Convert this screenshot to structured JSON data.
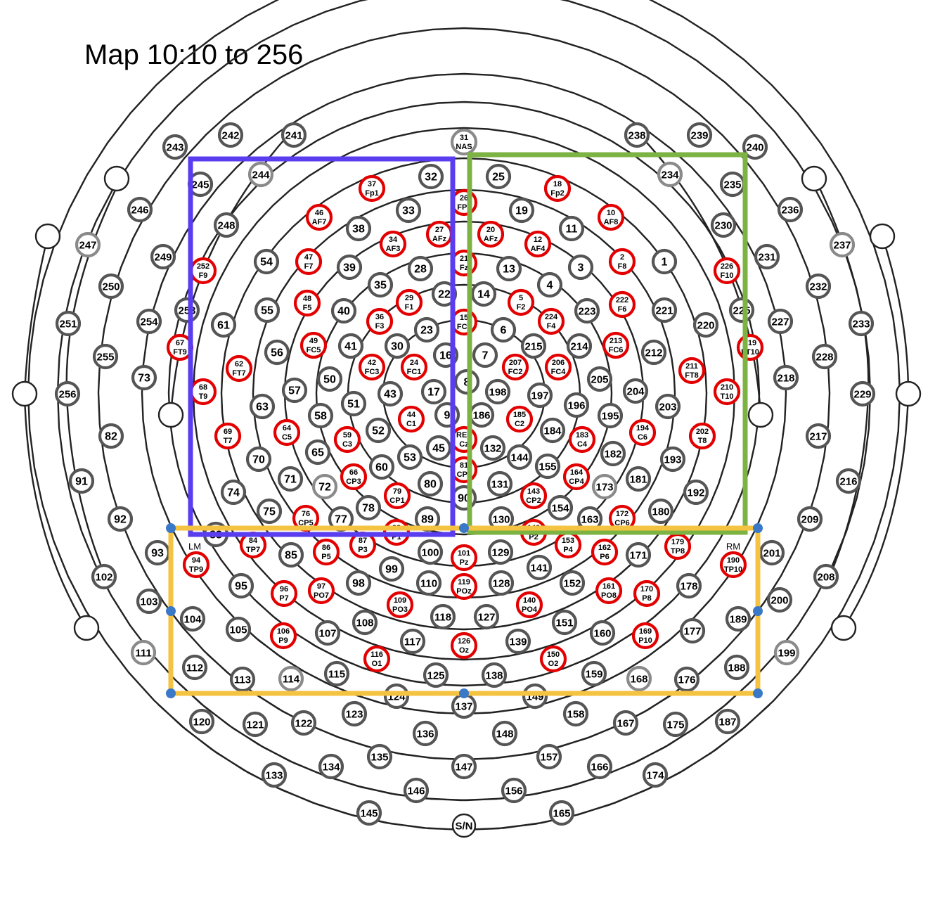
{
  "title": "Map 10:10 to 256",
  "colors": {
    "ring": "#222222",
    "gray": "#555555",
    "light": "#8a8a8a",
    "red": "#e30000",
    "purple": "#5b3df0",
    "green": "#7cb342",
    "yellow": "#f5c342",
    "handle": "#3a78c8"
  },
  "reference_labels": {
    "left": "LM",
    "right": "RM"
  },
  "electrodes": [
    {
      "n": "31",
      "t": "NAS",
      "s": "light"
    },
    {
      "n": "25"
    },
    {
      "n": "32"
    },
    {
      "n": "18",
      "t": "Fp2",
      "s": "red"
    },
    {
      "n": "37",
      "t": "Fp1",
      "s": "red"
    },
    {
      "n": "26",
      "t": "FPz",
      "s": "red"
    },
    {
      "n": "19"
    },
    {
      "n": "33"
    },
    {
      "n": "10",
      "t": "AF8",
      "s": "red"
    },
    {
      "n": "46",
      "t": "AF7",
      "s": "red"
    },
    {
      "n": "11"
    },
    {
      "n": "38"
    },
    {
      "n": "20",
      "t": "AFz",
      "s": "red"
    },
    {
      "n": "27",
      "t": "AFz",
      "s": "red"
    },
    {
      "n": "12",
      "t": "AF4",
      "s": "red"
    },
    {
      "n": "34",
      "t": "AF3",
      "s": "red"
    },
    {
      "n": "21",
      "t": "Fz",
      "s": "red"
    },
    {
      "n": "13"
    },
    {
      "n": "28"
    },
    {
      "n": "3"
    },
    {
      "n": "39"
    },
    {
      "n": "2",
      "t": "F8",
      "s": "red"
    },
    {
      "n": "47",
      "t": "F7",
      "s": "red"
    },
    {
      "n": "4"
    },
    {
      "n": "35"
    },
    {
      "n": "14"
    },
    {
      "n": "22"
    },
    {
      "n": "5",
      "t": "F2",
      "s": "red"
    },
    {
      "n": "29",
      "t": "F1",
      "s": "red"
    },
    {
      "n": "222",
      "t": "F6",
      "s": "red"
    },
    {
      "n": "48",
      "t": "F5",
      "s": "red"
    },
    {
      "n": "223"
    },
    {
      "n": "40"
    },
    {
      "n": "224",
      "t": "F4",
      "s": "red"
    },
    {
      "n": "36",
      "t": "F3",
      "s": "red"
    },
    {
      "n": "6"
    },
    {
      "n": "23"
    },
    {
      "n": "15",
      "t": "FCz",
      "s": "red"
    },
    {
      "n": "213",
      "t": "FC6",
      "s": "red"
    },
    {
      "n": "49",
      "t": "FC5",
      "s": "red"
    },
    {
      "n": "215"
    },
    {
      "n": "30"
    },
    {
      "n": "214"
    },
    {
      "n": "41"
    },
    {
      "n": "7"
    },
    {
      "n": "16"
    },
    {
      "n": "207",
      "t": "FC2",
      "s": "red"
    },
    {
      "n": "24",
      "t": "FC1",
      "s": "red"
    },
    {
      "n": "206",
      "t": "FC4",
      "s": "red"
    },
    {
      "n": "42",
      "t": "FC3",
      "s": "red"
    },
    {
      "n": "205"
    },
    {
      "n": "50"
    },
    {
      "n": "8"
    },
    {
      "n": "17"
    },
    {
      "n": "198"
    },
    {
      "n": "43"
    },
    {
      "n": "197"
    },
    {
      "n": "51"
    },
    {
      "n": "196"
    },
    {
      "n": "57"
    },
    {
      "n": "204"
    },
    {
      "n": "186"
    },
    {
      "n": "9"
    },
    {
      "n": "185",
      "t": "C2",
      "s": "red"
    },
    {
      "n": "44",
      "t": "C1",
      "s": "red"
    },
    {
      "n": "195"
    },
    {
      "n": "58"
    },
    {
      "n": "184"
    },
    {
      "n": "52"
    },
    {
      "n": "183",
      "t": "C4",
      "s": "red"
    },
    {
      "n": "59",
      "t": "C3",
      "s": "red"
    },
    {
      "n": "194",
      "t": "C6",
      "s": "red"
    },
    {
      "n": "64",
      "t": "C5",
      "s": "red"
    },
    {
      "n": "REF",
      "t": "Cz",
      "s": "red"
    },
    {
      "n": "132"
    },
    {
      "n": "45"
    },
    {
      "n": "144"
    },
    {
      "n": "53"
    },
    {
      "n": "182"
    },
    {
      "n": "65"
    },
    {
      "n": "155"
    },
    {
      "n": "60"
    },
    {
      "n": "81",
      "t": "CPz",
      "s": "red"
    },
    {
      "n": "164",
      "t": "CP4",
      "s": "red"
    },
    {
      "n": "66",
      "t": "CP3",
      "s": "red"
    },
    {
      "n": "131"
    },
    {
      "n": "80"
    },
    {
      "n": "173",
      "s": "light"
    },
    {
      "n": "72",
      "s": "light"
    },
    {
      "n": "181"
    },
    {
      "n": "71"
    },
    {
      "n": "143",
      "t": "CP2",
      "s": "red"
    },
    {
      "n": "79",
      "t": "CP1",
      "s": "red"
    },
    {
      "n": "90"
    },
    {
      "n": "154"
    },
    {
      "n": "78"
    },
    {
      "n": "130"
    },
    {
      "n": "89"
    },
    {
      "n": "163"
    },
    {
      "n": "77"
    },
    {
      "n": "172",
      "t": "CP6",
      "s": "red"
    },
    {
      "n": "76",
      "t": "CP5",
      "s": "red"
    },
    {
      "n": "180"
    },
    {
      "n": "75"
    },
    {
      "n": "192"
    },
    {
      "n": "74"
    },
    {
      "n": "193"
    },
    {
      "n": "70"
    },
    {
      "n": "203"
    },
    {
      "n": "63"
    },
    {
      "n": "212"
    },
    {
      "n": "56"
    },
    {
      "n": "221"
    },
    {
      "n": "55"
    },
    {
      "n": "1"
    },
    {
      "n": "54"
    },
    {
      "n": "211",
      "t": "FT8",
      "s": "red"
    },
    {
      "n": "62",
      "t": "FT7",
      "s": "red"
    },
    {
      "n": "220"
    },
    {
      "n": "61"
    },
    {
      "n": "210",
      "t": "T10",
      "s": "red"
    },
    {
      "n": "68",
      "t": "T9",
      "s": "red"
    },
    {
      "n": "202",
      "t": "T8",
      "s": "red"
    },
    {
      "n": "69",
      "t": "T7",
      "s": "red"
    },
    {
      "n": "226",
      "t": "F10",
      "s": "red"
    },
    {
      "n": "252",
      "t": "F9",
      "s": "red"
    },
    {
      "n": "230"
    },
    {
      "n": "248"
    },
    {
      "n": "234",
      "s": "light"
    },
    {
      "n": "244",
      "s": "light"
    },
    {
      "n": "235"
    },
    {
      "n": "245"
    },
    {
      "n": "225"
    },
    {
      "n": "253"
    },
    {
      "n": "219",
      "t": "FT10",
      "s": "red"
    },
    {
      "n": "67",
      "t": "FT9",
      "s": "red"
    },
    {
      "n": "88",
      "t": "P1",
      "s": "red"
    },
    {
      "n": "142",
      "t": "P2",
      "s": "red"
    },
    {
      "n": "100"
    },
    {
      "n": "129"
    },
    {
      "n": "101",
      "t": "Pz",
      "s": "red"
    },
    {
      "n": "87",
      "t": "P3",
      "s": "red"
    },
    {
      "n": "153",
      "t": "P4",
      "s": "red"
    },
    {
      "n": "86",
      "t": "P5",
      "s": "red"
    },
    {
      "n": "162",
      "t": "P6",
      "s": "red"
    },
    {
      "n": "84",
      "t": "TP7",
      "s": "red"
    },
    {
      "n": "179",
      "t": "TP8",
      "s": "red"
    },
    {
      "n": "85"
    },
    {
      "n": "171"
    },
    {
      "n": "99"
    },
    {
      "n": "141"
    },
    {
      "n": "110"
    },
    {
      "n": "128"
    },
    {
      "n": "119",
      "t": "POz",
      "s": "red"
    },
    {
      "n": "98"
    },
    {
      "n": "152"
    },
    {
      "n": "97",
      "t": "PO7",
      "s": "red"
    },
    {
      "n": "161",
      "t": "PO8",
      "s": "red"
    },
    {
      "n": "96",
      "t": "P7",
      "s": "red"
    },
    {
      "n": "170",
      "t": "P8",
      "s": "red"
    },
    {
      "n": "95"
    },
    {
      "n": "178"
    },
    {
      "n": "109",
      "t": "PO3",
      "s": "red"
    },
    {
      "n": "140",
      "t": "PO4",
      "s": "red"
    },
    {
      "n": "118"
    },
    {
      "n": "127"
    },
    {
      "n": "108"
    },
    {
      "n": "151"
    },
    {
      "n": "107"
    },
    {
      "n": "160"
    },
    {
      "n": "105"
    },
    {
      "n": "177"
    },
    {
      "n": "117"
    },
    {
      "n": "139"
    },
    {
      "n": "126",
      "t": "Oz",
      "s": "red"
    },
    {
      "n": "116",
      "t": "O1",
      "s": "red"
    },
    {
      "n": "150",
      "t": "O2",
      "s": "red"
    },
    {
      "n": "106",
      "t": "P9",
      "s": "red"
    },
    {
      "n": "169",
      "t": "P10",
      "s": "red"
    },
    {
      "n": "104"
    },
    {
      "n": "189"
    },
    {
      "n": "115"
    },
    {
      "n": "159"
    },
    {
      "n": "125"
    },
    {
      "n": "138"
    },
    {
      "n": "114",
      "s": "light"
    },
    {
      "n": "168",
      "s": "light"
    },
    {
      "n": "113"
    },
    {
      "n": "176"
    },
    {
      "n": "112"
    },
    {
      "n": "188"
    },
    {
      "n": "124"
    },
    {
      "n": "149"
    },
    {
      "n": "137"
    },
    {
      "n": "94",
      "t": "TP9",
      "s": "red"
    },
    {
      "n": "190",
      "t": "TP10",
      "s": "red"
    },
    {
      "n": "83"
    },
    {
      "n": "201"
    },
    {
      "n": "103"
    },
    {
      "n": "200"
    },
    {
      "n": "123"
    },
    {
      "n": "158"
    },
    {
      "n": "136"
    },
    {
      "n": "148"
    },
    {
      "n": "122"
    },
    {
      "n": "167"
    },
    {
      "n": "121"
    },
    {
      "n": "175"
    },
    {
      "n": "120"
    },
    {
      "n": "187"
    },
    {
      "n": "135"
    },
    {
      "n": "157"
    },
    {
      "n": "147"
    },
    {
      "n": "134"
    },
    {
      "n": "166"
    },
    {
      "n": "133"
    },
    {
      "n": "174"
    },
    {
      "n": "146"
    },
    {
      "n": "156"
    },
    {
      "n": "145"
    },
    {
      "n": "165"
    },
    {
      "n": "S/N",
      "s": "plain"
    },
    {
      "n": "243"
    },
    {
      "n": "242"
    },
    {
      "n": "241"
    },
    {
      "n": "238"
    },
    {
      "n": "239"
    },
    {
      "n": "240"
    },
    {
      "n": "246"
    },
    {
      "n": "236"
    },
    {
      "n": "249"
    },
    {
      "n": "231"
    },
    {
      "n": "250"
    },
    {
      "n": "232"
    },
    {
      "n": "254"
    },
    {
      "n": "227"
    },
    {
      "n": "251"
    },
    {
      "n": "233"
    },
    {
      "n": "255"
    },
    {
      "n": "228"
    },
    {
      "n": "73"
    },
    {
      "n": "218"
    },
    {
      "n": "256"
    },
    {
      "n": "229"
    },
    {
      "n": "82"
    },
    {
      "n": "217"
    },
    {
      "n": "91"
    },
    {
      "n": "216"
    },
    {
      "n": "92"
    },
    {
      "n": "209"
    },
    {
      "n": "93"
    },
    {
      "n": "102"
    },
    {
      "n": "208"
    },
    {
      "n": "111",
      "s": "light"
    },
    {
      "n": "199",
      "s": "light"
    },
    {
      "n": "247",
      "s": "light"
    },
    {
      "n": "237",
      "s": "light"
    }
  ]
}
